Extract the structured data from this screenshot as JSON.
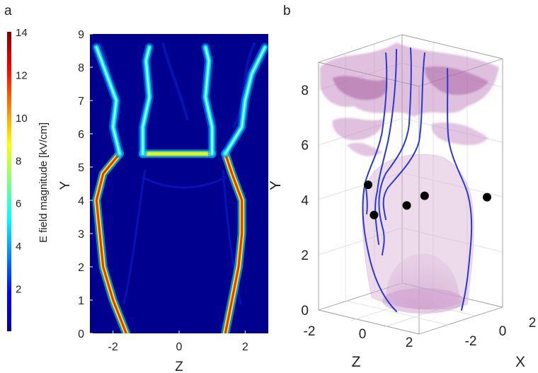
{
  "panels": {
    "a": {
      "label": "a"
    },
    "b": {
      "label": "b"
    }
  },
  "chart_data": [
    {
      "type": "heatmap",
      "panel": "a",
      "title": "",
      "xlabel": "Z",
      "ylabel": "Y",
      "xlim": [
        -2.7,
        2.7
      ],
      "ylim": [
        0,
        9
      ],
      "x_ticks": [
        -2,
        0,
        2
      ],
      "y_ticks": [
        0,
        1,
        2,
        3,
        4,
        5,
        6,
        7,
        8,
        9
      ],
      "colorbar": {
        "label": "E field magnitude  [kV/cm]",
        "range": [
          0,
          14
        ],
        "ticks": [
          2,
          4,
          6,
          8,
          10,
          12,
          14
        ],
        "colormap": "jet"
      },
      "background_color": "#00008f",
      "high_field_paths": [
        {
          "name": "left-boundary",
          "points": [
            [
              -1.6,
              0
            ],
            [
              -2.0,
              1
            ],
            [
              -2.3,
              2
            ],
            [
              -2.4,
              3
            ],
            [
              -2.5,
              4
            ],
            [
              -2.3,
              4.8
            ],
            [
              -1.8,
              5.4
            ]
          ],
          "peak": 12
        },
        {
          "name": "right-boundary",
          "points": [
            [
              1.4,
              0
            ],
            [
              1.6,
              1
            ],
            [
              1.8,
              2
            ],
            [
              1.9,
              3
            ],
            [
              1.9,
              4
            ],
            [
              1.6,
              4.8
            ],
            [
              1.4,
              5.4
            ]
          ],
          "peak": 12
        },
        {
          "name": "top-horizontal",
          "points": [
            [
              -1.1,
              5.4
            ],
            [
              1.0,
              5.4
            ]
          ],
          "peak": 10
        },
        {
          "name": "left-inner-channel",
          "points": [
            [
              -1.1,
              5.4
            ],
            [
              -1.1,
              6.2
            ],
            [
              -0.9,
              7.1
            ],
            [
              -1.0,
              8.2
            ],
            [
              -0.9,
              8.6
            ]
          ],
          "peak": 6
        },
        {
          "name": "right-inner-channel",
          "points": [
            [
              1.0,
              5.4
            ],
            [
              1.0,
              6.2
            ],
            [
              0.8,
              7.1
            ],
            [
              0.9,
              8.2
            ],
            [
              0.8,
              8.6
            ]
          ],
          "peak": 6
        },
        {
          "name": "left-outer-channel",
          "points": [
            [
              -1.8,
              5.4
            ],
            [
              -2.0,
              6.2
            ],
            [
              -1.9,
              7.0
            ],
            [
              -2.2,
              7.8
            ],
            [
              -2.5,
              8.6
            ]
          ],
          "peak": 6
        },
        {
          "name": "right-outer-channel",
          "points": [
            [
              1.4,
              5.4
            ],
            [
              1.9,
              6.2
            ],
            [
              2.0,
              7.0
            ],
            [
              2.2,
              7.8
            ],
            [
              2.6,
              8.6
            ]
          ],
          "peak": 6
        }
      ]
    },
    {
      "type": "scatter",
      "panel": "b",
      "title": "",
      "xlabel": "X",
      "ylabel": "Y",
      "zlabel": "Z",
      "y_ticks": [
        0,
        2,
        4,
        6,
        8
      ],
      "z_ticks": [
        -2,
        0,
        2
      ],
      "x_ticks": [
        -2,
        0,
        2
      ],
      "surface_color": "#c89ac6",
      "streamline_color": "#2a3ad0",
      "points": [
        {
          "z": -0.2,
          "y": 4.55
        },
        {
          "z": -0.1,
          "y": 3.45
        },
        {
          "z": 0.45,
          "y": 3.8
        },
        {
          "z": 0.75,
          "y": 4.15
        },
        {
          "z": 1.8,
          "y": 4.1
        }
      ]
    }
  ]
}
